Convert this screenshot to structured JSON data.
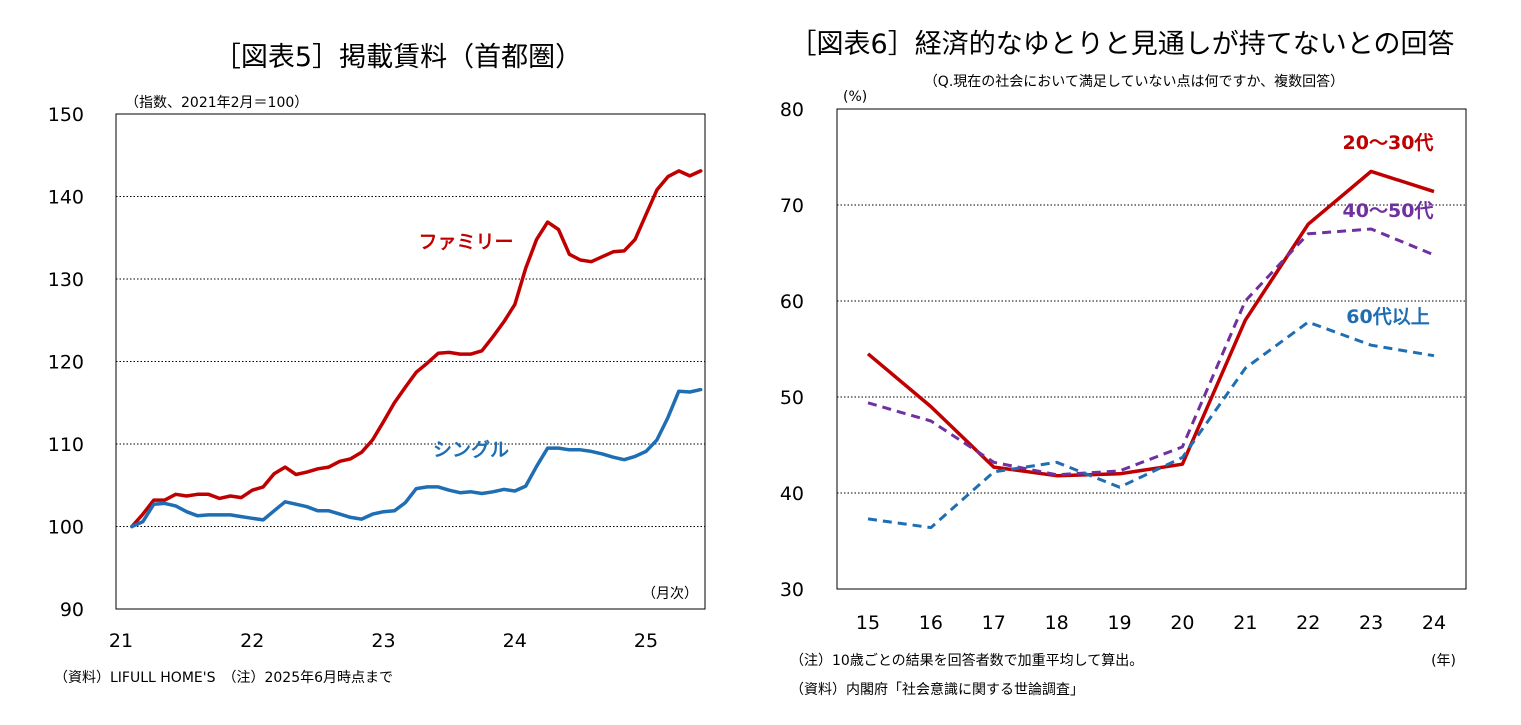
{
  "chart_data": [
    {
      "type": "line",
      "title": "［図表5］掲載賃料（首都圏）",
      "unit_note": "（指数、2021年2月＝100）",
      "x_unit": "（月次）",
      "x_ticks": [
        "21",
        "22",
        "23",
        "24",
        "25"
      ],
      "ylim": [
        90,
        150
      ],
      "y_ticks": [
        "90",
        "100",
        "110",
        "120",
        "130",
        "140",
        "150"
      ],
      "grid": true,
      "x_start": "2021-02",
      "series": [
        {
          "name": "ファミリー",
          "color": "#c00000",
          "values": [
            100.0,
            101.5,
            103.2,
            103.2,
            103.9,
            103.7,
            103.9,
            103.9,
            103.4,
            103.7,
            103.5,
            104.4,
            104.8,
            106.4,
            107.2,
            106.3,
            106.6,
            107.0,
            107.2,
            107.9,
            108.2,
            109.0,
            110.5,
            112.7,
            115.0,
            116.9,
            118.7,
            119.8,
            121.0,
            121.1,
            120.9,
            120.9,
            121.3,
            123.0,
            124.8,
            126.9,
            131.3,
            134.8,
            136.9,
            136.0,
            133.0,
            132.3,
            132.1,
            132.7,
            133.3,
            133.4,
            134.8,
            137.8,
            140.8,
            142.4,
            143.1,
            142.5,
            143.1
          ]
        },
        {
          "name": "シングル",
          "color": "#1f6eb4",
          "values": [
            100.0,
            100.6,
            102.7,
            102.8,
            102.5,
            101.8,
            101.3,
            101.4,
            101.4,
            101.4,
            101.2,
            101.0,
            100.8,
            101.9,
            103.0,
            102.7,
            102.4,
            101.9,
            101.9,
            101.5,
            101.1,
            100.9,
            101.5,
            101.8,
            101.9,
            102.9,
            104.6,
            104.8,
            104.8,
            104.4,
            104.1,
            104.2,
            104.0,
            104.2,
            104.5,
            104.3,
            104.9,
            107.3,
            109.5,
            109.5,
            109.3,
            109.3,
            109.1,
            108.8,
            108.4,
            108.1,
            108.5,
            109.1,
            110.5,
            113.2,
            116.4,
            116.3,
            116.6
          ]
        }
      ],
      "footnote": "（資料）LIFULL HOME'S　（注）2025年6月時点まで"
    },
    {
      "type": "line",
      "title": "［図表6］経済的なゆとりと見通しが持てないとの回答",
      "subtitle": "（Q.現在の社会において満足していない点は何ですか、複数回答）",
      "unit_note": "(%)",
      "x_unit": "(年)",
      "categories": [
        "15",
        "16",
        "17",
        "18",
        "19",
        "20",
        "21",
        "22",
        "23",
        "24"
      ],
      "ylim": [
        30,
        80
      ],
      "y_ticks": [
        "30",
        "40",
        "50",
        "60",
        "70",
        "80"
      ],
      "grid": true,
      "series": [
        {
          "name": "20～30代",
          "color": "#c00000",
          "dash": false,
          "values": [
            54.5,
            49.0,
            42.7,
            41.8,
            42.0,
            43.0,
            58.0,
            68.0,
            73.5,
            71.4
          ]
        },
        {
          "name": "40～50代",
          "color": "#7030a0",
          "dash": true,
          "values": [
            49.4,
            47.5,
            43.2,
            41.9,
            42.3,
            44.8,
            60.0,
            67.0,
            67.5,
            64.8
          ]
        },
        {
          "name": "60代以上",
          "color": "#1f6eb4",
          "dash": true,
          "values": [
            37.3,
            36.4,
            42.2,
            43.2,
            40.6,
            43.7,
            53.0,
            57.8,
            55.4,
            54.3
          ]
        }
      ],
      "footnotes": [
        "（注）10歳ごとの結果を回答者数で加重平均して算出。",
        "（資料）内閣府「社会意識に関する世論調査」"
      ]
    }
  ]
}
